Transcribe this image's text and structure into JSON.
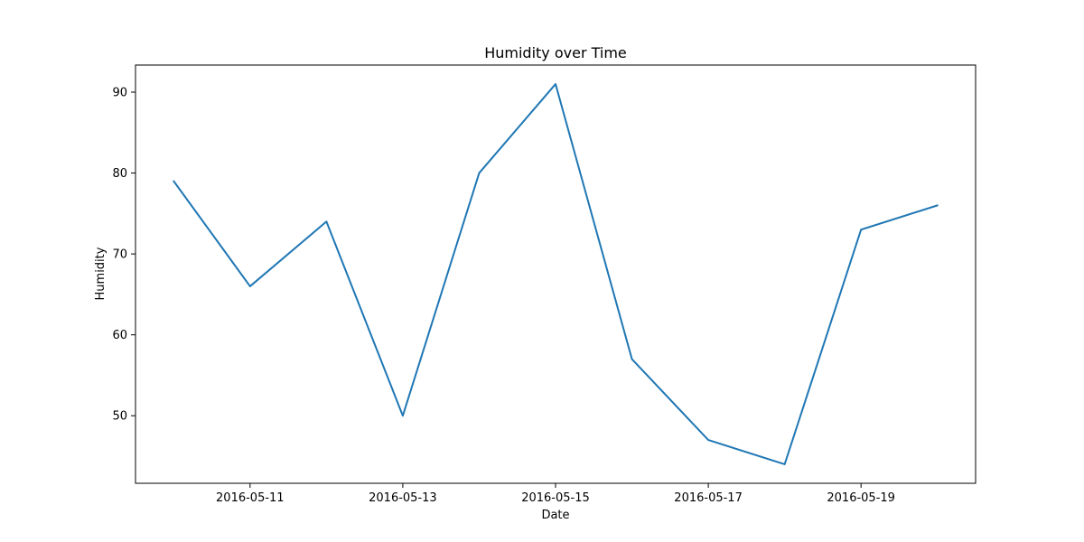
{
  "chart_data": {
    "type": "line",
    "title": "Humidity over Time",
    "xlabel": "Date",
    "ylabel": "Humidity",
    "x": [
      "2016-05-10",
      "2016-05-11",
      "2016-05-12",
      "2016-05-13",
      "2016-05-14",
      "2016-05-15",
      "2016-05-16",
      "2016-05-17",
      "2016-05-18",
      "2016-05-19",
      "2016-05-20"
    ],
    "series": [
      {
        "values": [
          79,
          66,
          74,
          50,
          80,
          91,
          57,
          47,
          44,
          73,
          76
        ]
      }
    ],
    "x_ticks": [
      "2016-05-11",
      "2016-05-13",
      "2016-05-15",
      "2016-05-17",
      "2016-05-19"
    ],
    "y_ticks": [
      50,
      60,
      70,
      80,
      90
    ],
    "xlim": [
      "2016-05-09T12:00:00",
      "2016-05-20T12:00:00"
    ],
    "ylim": [
      41.65,
      93.35
    ],
    "grid": false,
    "legend": "none",
    "line_color": "#1f77b4"
  }
}
